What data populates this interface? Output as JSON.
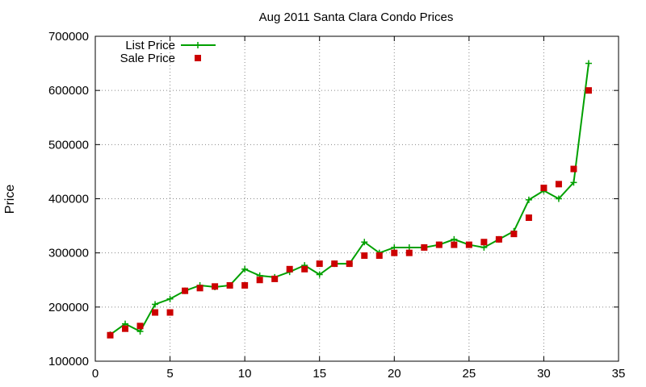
{
  "chart_data": {
    "type": "line",
    "title": "Aug 2011 Santa Clara Condo Prices",
    "xlabel": "",
    "ylabel": "Price",
    "xlim": [
      0,
      35
    ],
    "ylim": [
      100000,
      700000
    ],
    "x_ticks": [
      0,
      5,
      10,
      15,
      20,
      25,
      30,
      35
    ],
    "y_ticks": [
      100000,
      200000,
      300000,
      400000,
      500000,
      600000,
      700000
    ],
    "grid": true,
    "legend_position": "top-left",
    "series": [
      {
        "name": "List Price",
        "style": "line-points",
        "marker": "plus",
        "color": "#00a000",
        "x": [
          1,
          2,
          3,
          4,
          5,
          6,
          7,
          8,
          9,
          10,
          11,
          12,
          13,
          14,
          15,
          16,
          17,
          18,
          19,
          20,
          21,
          22,
          23,
          24,
          25,
          26,
          27,
          28,
          29,
          30,
          31,
          32,
          33
        ],
        "y": [
          149000,
          169000,
          155000,
          205000,
          215000,
          230000,
          240000,
          237000,
          240000,
          270000,
          258000,
          255000,
          265000,
          277000,
          260000,
          280000,
          280000,
          320000,
          300000,
          310000,
          310000,
          310000,
          315000,
          325000,
          315000,
          310000,
          325000,
          340000,
          398000,
          415000,
          400000,
          430000,
          650000
        ]
      },
      {
        "name": "Sale Price",
        "style": "points",
        "marker": "square",
        "color": "#cc0000",
        "x": [
          1,
          2,
          3,
          4,
          5,
          6,
          7,
          8,
          9,
          10,
          11,
          12,
          13,
          14,
          15,
          16,
          17,
          18,
          19,
          20,
          21,
          22,
          23,
          24,
          25,
          26,
          27,
          28,
          29,
          30,
          31,
          32,
          33
        ],
        "y": [
          148000,
          160000,
          165000,
          190000,
          190000,
          230000,
          235000,
          238000,
          240000,
          240000,
          250000,
          252000,
          270000,
          270000,
          280000,
          280000,
          280000,
          295000,
          295000,
          300000,
          300000,
          310000,
          315000,
          315000,
          315000,
          320000,
          325000,
          335000,
          365000,
          420000,
          427000,
          455000,
          600000
        ]
      }
    ]
  }
}
